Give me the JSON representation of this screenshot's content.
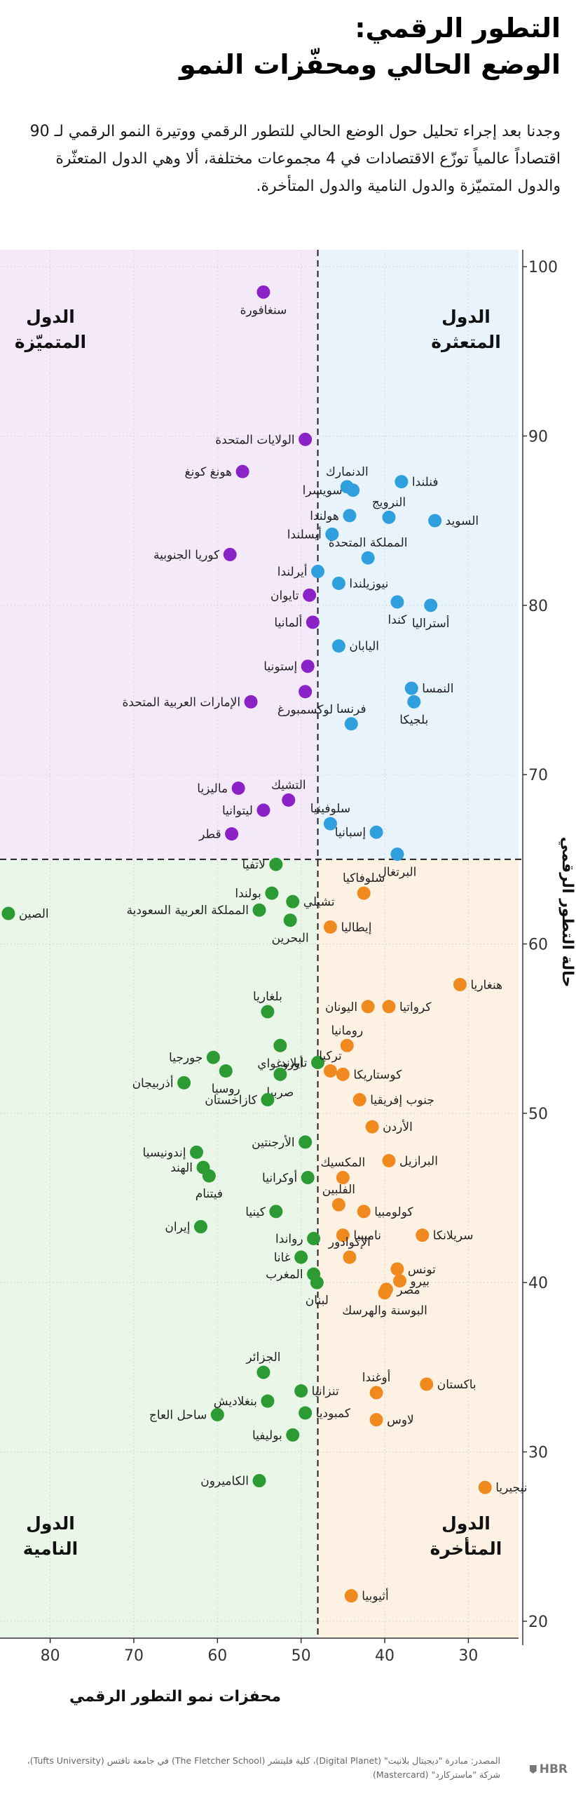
{
  "header": {
    "title_line1": "التطور الرقمي:",
    "title_line2": "الوضع الحالي ومحفّزات النمو",
    "intro_text": "وجدنا بعد إجراء تحليل حول الوضع الحالي للتطور الرقمي ووتيرة النمو الرقمي لـ 90 اقتصاداً عالمياً توزّع الاقتصادات في 4 مجموعات مختلفة، ألا وهي الدول المتعثّرة والدول المتميّزة والدول النامية والدول المتأخرة."
  },
  "colors": {
    "standout": "#8b22c8",
    "stall_out": "#2f9fdd",
    "break_out": "#2c9b34",
    "watch_out": "#f08a1e",
    "standout_bg": "#f4e9f8",
    "stall_out_bg": "#e8f3fc",
    "break_out_bg": "#eaf6e8",
    "watch_out_bg": "#fdf1e4"
  },
  "chart_data": {
    "type": "scatter",
    "xlabel": "محفزات نمو التطور الرقمي",
    "ylabel": "حالة التطور الرقمي",
    "xlim": [
      86,
      24
    ],
    "ylim": [
      19,
      101
    ],
    "x_ticks": [
      80,
      70,
      60,
      50,
      40,
      30
    ],
    "y_ticks": [
      100,
      90,
      80,
      70,
      60,
      50,
      40,
      30,
      20
    ],
    "divider_x": 48,
    "divider_y": 65,
    "quadrants": {
      "top_left": {
        "line1": "الدول",
        "line2": "المتميّزة",
        "group": "standout"
      },
      "top_right": {
        "line1": "الدول",
        "line2": "المتعثرة",
        "group": "stall_out"
      },
      "bottom_left": {
        "line1": "الدول",
        "line2": "النامية",
        "group": "break_out"
      },
      "bottom_right": {
        "line1": "الدول",
        "line2": "المتأخرة",
        "group": "watch_out"
      }
    },
    "points": [
      {
        "name": "سنغافورة",
        "x": 54.5,
        "y": 98.5,
        "group": "standout",
        "label_pos": "below"
      },
      {
        "name": "الولايات المتحدة",
        "x": 49.5,
        "y": 89.8,
        "group": "standout",
        "label_pos": "left"
      },
      {
        "name": "هونغ كونغ",
        "x": 57.0,
        "y": 87.9,
        "group": "standout",
        "label_pos": "left"
      },
      {
        "name": "كوريا الجنوبية",
        "x": 58.5,
        "y": 83.0,
        "group": "standout",
        "label_pos": "left"
      },
      {
        "name": "تايوان",
        "x": 49.0,
        "y": 80.6,
        "group": "standout",
        "label_pos": "left"
      },
      {
        "name": "ألمانيا",
        "x": 48.6,
        "y": 79.0,
        "group": "standout",
        "label_pos": "left"
      },
      {
        "name": "إستونيا",
        "x": 49.2,
        "y": 76.4,
        "group": "standout",
        "label_pos": "left"
      },
      {
        "name": "الإمارات العربية المتحدة",
        "x": 56.0,
        "y": 74.3,
        "group": "standout",
        "label_pos": "left"
      },
      {
        "name": "لوكسمبورغ",
        "x": 49.5,
        "y": 74.9,
        "group": "standout",
        "label_pos": "below"
      },
      {
        "name": "التشيك",
        "x": 51.5,
        "y": 68.5,
        "group": "standout",
        "label_pos": "above"
      },
      {
        "name": "ماليزيا",
        "x": 57.5,
        "y": 69.2,
        "group": "standout",
        "label_pos": "left"
      },
      {
        "name": "ليتوانيا",
        "x": 54.5,
        "y": 67.9,
        "group": "standout",
        "label_pos": "left"
      },
      {
        "name": "قطر",
        "x": 58.3,
        "y": 66.5,
        "group": "standout",
        "label_pos": "left"
      },
      {
        "name": "الدنمارك",
        "x": 44.5,
        "y": 87.0,
        "group": "stall_out",
        "label_pos": "above"
      },
      {
        "name": "فنلندا",
        "x": 38.0,
        "y": 87.3,
        "group": "stall_out",
        "label_pos": "right"
      },
      {
        "name": "سويسرا",
        "x": 43.8,
        "y": 86.8,
        "group": "stall_out",
        "label_pos": "left"
      },
      {
        "name": "النرويج",
        "x": 39.5,
        "y": 85.2,
        "group": "stall_out",
        "label_pos": "above"
      },
      {
        "name": "هولندا",
        "x": 44.2,
        "y": 85.3,
        "group": "stall_out",
        "label_pos": "left"
      },
      {
        "name": "السويد",
        "x": 34.0,
        "y": 85.0,
        "group": "stall_out",
        "label_pos": "right"
      },
      {
        "name": "أيسلندا",
        "x": 46.3,
        "y": 84.2,
        "group": "stall_out",
        "label_pos": "left"
      },
      {
        "name": "المملكة المتحدة",
        "x": 42.0,
        "y": 82.8,
        "group": "stall_out",
        "label_pos": "above"
      },
      {
        "name": "أيرلندا",
        "x": 48.0,
        "y": 82.0,
        "group": "stall_out",
        "label_pos": "left"
      },
      {
        "name": "نيوزيلندا",
        "x": 45.5,
        "y": 81.3,
        "group": "stall_out",
        "label_pos": "right"
      },
      {
        "name": "كندا",
        "x": 38.5,
        "y": 80.2,
        "group": "stall_out",
        "label_pos": "below"
      },
      {
        "name": "أستراليا",
        "x": 34.5,
        "y": 80.0,
        "group": "stall_out",
        "label_pos": "below"
      },
      {
        "name": "اليابان",
        "x": 45.5,
        "y": 77.6,
        "group": "stall_out",
        "label_pos": "right"
      },
      {
        "name": "النمسا",
        "x": 36.8,
        "y": 75.1,
        "group": "stall_out",
        "label_pos": "right"
      },
      {
        "name": "بلجيكا",
        "x": 36.5,
        "y": 74.3,
        "group": "stall_out",
        "label_pos": "below"
      },
      {
        "name": "فرنسا",
        "x": 44.0,
        "y": 73.0,
        "group": "stall_out",
        "label_pos": "above"
      },
      {
        "name": "سلوفينيا",
        "x": 46.5,
        "y": 67.1,
        "group": "stall_out",
        "label_pos": "above"
      },
      {
        "name": "إسبانيا",
        "x": 41.0,
        "y": 66.6,
        "group": "stall_out",
        "label_pos": "left"
      },
      {
        "name": "البرتغال",
        "x": 38.5,
        "y": 65.3,
        "group": "stall_out",
        "label_pos": "below"
      },
      {
        "name": "لاتفيا",
        "x": 53.0,
        "y": 64.7,
        "group": "break_out",
        "label_pos": "left"
      },
      {
        "name": "بولندا",
        "x": 53.5,
        "y": 63.0,
        "group": "break_out",
        "label_pos": "left"
      },
      {
        "name": "تشيلي",
        "x": 51.0,
        "y": 62.5,
        "group": "break_out",
        "label_pos": "right"
      },
      {
        "name": "المملكة العربية السعودية",
        "x": 55.0,
        "y": 62.0,
        "group": "break_out",
        "label_pos": "left"
      },
      {
        "name": "البحرين",
        "x": 51.3,
        "y": 61.4,
        "group": "break_out",
        "label_pos": "below"
      },
      {
        "name": "الصين",
        "x": 85.0,
        "y": 61.8,
        "group": "break_out",
        "label_pos": "right"
      },
      {
        "name": "بلغاريا",
        "x": 54.0,
        "y": 56.0,
        "group": "break_out",
        "label_pos": "above"
      },
      {
        "name": "أوروغواي",
        "x": 52.5,
        "y": 54.0,
        "group": "break_out",
        "label_pos": "below"
      },
      {
        "name": "جورجيا",
        "x": 60.5,
        "y": 53.3,
        "group": "break_out",
        "label_pos": "left"
      },
      {
        "name": "تايلاند",
        "x": 48.0,
        "y": 53.0,
        "group": "break_out",
        "label_pos": "left"
      },
      {
        "name": "روسيا",
        "x": 59.0,
        "y": 52.5,
        "group": "break_out",
        "label_pos": "below"
      },
      {
        "name": "صربيا",
        "x": 52.5,
        "y": 52.3,
        "group": "break_out",
        "label_pos": "below"
      },
      {
        "name": "أذربيجان",
        "x": 64.0,
        "y": 51.8,
        "group": "break_out",
        "label_pos": "left"
      },
      {
        "name": "كازاخستان",
        "x": 54.0,
        "y": 50.8,
        "group": "break_out",
        "label_pos": "left"
      },
      {
        "name": "الأرجنتين",
        "x": 49.5,
        "y": 48.3,
        "group": "break_out",
        "label_pos": "left"
      },
      {
        "name": "إندونيسيا",
        "x": 62.5,
        "y": 47.7,
        "group": "break_out",
        "label_pos": "left"
      },
      {
        "name": "الهند",
        "x": 61.7,
        "y": 46.8,
        "group": "break_out",
        "label_pos": "left"
      },
      {
        "name": "فيتنام",
        "x": 61.0,
        "y": 46.3,
        "group": "break_out",
        "label_pos": "below"
      },
      {
        "name": "أوكرانيا",
        "x": 49.2,
        "y": 46.2,
        "group": "break_out",
        "label_pos": "left"
      },
      {
        "name": "كينيا",
        "x": 53.0,
        "y": 44.2,
        "group": "break_out",
        "label_pos": "left"
      },
      {
        "name": "إيران",
        "x": 62.0,
        "y": 43.3,
        "group": "break_out",
        "label_pos": "left"
      },
      {
        "name": "رواندا",
        "x": 48.5,
        "y": 42.6,
        "group": "break_out",
        "label_pos": "left"
      },
      {
        "name": "غانا",
        "x": 50.0,
        "y": 41.5,
        "group": "break_out",
        "label_pos": "left"
      },
      {
        "name": "المغرب",
        "x": 48.5,
        "y": 40.5,
        "group": "break_out",
        "label_pos": "left"
      },
      {
        "name": "لبنان",
        "x": 48.1,
        "y": 40.0,
        "group": "break_out",
        "label_pos": "below"
      },
      {
        "name": "الجزائر",
        "x": 54.5,
        "y": 34.7,
        "group": "break_out",
        "label_pos": "above"
      },
      {
        "name": "تنزانيا",
        "x": 50.0,
        "y": 33.6,
        "group": "break_out",
        "label_pos": "right"
      },
      {
        "name": "بنغلاديش",
        "x": 54.0,
        "y": 33.0,
        "group": "break_out",
        "label_pos": "left"
      },
      {
        "name": "ساحل العاج",
        "x": 60.0,
        "y": 32.2,
        "group": "break_out",
        "label_pos": "left"
      },
      {
        "name": "كمبوديا",
        "x": 49.5,
        "y": 32.3,
        "group": "break_out",
        "label_pos": "right"
      },
      {
        "name": "بوليفيا",
        "x": 51.0,
        "y": 31.0,
        "group": "break_out",
        "label_pos": "left"
      },
      {
        "name": "الكاميرون",
        "x": 55.0,
        "y": 28.3,
        "group": "break_out",
        "label_pos": "left"
      },
      {
        "name": "سلوفاكيا",
        "x": 42.5,
        "y": 63.0,
        "group": "watch_out",
        "label_pos": "above"
      },
      {
        "name": "إيطاليا",
        "x": 46.5,
        "y": 61.0,
        "group": "watch_out",
        "label_pos": "right"
      },
      {
        "name": "هنغاريا",
        "x": 31.0,
        "y": 57.6,
        "group": "watch_out",
        "label_pos": "right"
      },
      {
        "name": "اليونان",
        "x": 42.0,
        "y": 56.3,
        "group": "watch_out",
        "label_pos": "left"
      },
      {
        "name": "كرواتيا",
        "x": 39.5,
        "y": 56.3,
        "group": "watch_out",
        "label_pos": "right"
      },
      {
        "name": "رومانيا",
        "x": 44.5,
        "y": 54.0,
        "group": "watch_out",
        "label_pos": "above"
      },
      {
        "name": "تركيا",
        "x": 46.5,
        "y": 52.5,
        "group": "watch_out",
        "label_pos": "above"
      },
      {
        "name": "كوستاريكا",
        "x": 45.0,
        "y": 52.3,
        "group": "watch_out",
        "label_pos": "right"
      },
      {
        "name": "جنوب إفريقيا",
        "x": 43.0,
        "y": 50.8,
        "group": "watch_out",
        "label_pos": "right"
      },
      {
        "name": "الأردن",
        "x": 41.5,
        "y": 49.2,
        "group": "watch_out",
        "label_pos": "right"
      },
      {
        "name": "البرازيل",
        "x": 39.5,
        "y": 47.2,
        "group": "watch_out",
        "label_pos": "right"
      },
      {
        "name": "المكسيك",
        "x": 45.0,
        "y": 46.2,
        "group": "watch_out",
        "label_pos": "above"
      },
      {
        "name": "الفلبين",
        "x": 45.5,
        "y": 44.6,
        "group": "watch_out",
        "label_pos": "above"
      },
      {
        "name": "كولومبيا",
        "x": 42.5,
        "y": 44.2,
        "group": "watch_out",
        "label_pos": "right"
      },
      {
        "name": "سريلانكا",
        "x": 35.5,
        "y": 42.8,
        "group": "watch_out",
        "label_pos": "right"
      },
      {
        "name": "ناميبيا",
        "x": 45.0,
        "y": 42.8,
        "group": "watch_out",
        "label_pos": "right"
      },
      {
        "name": "الإكوادور",
        "x": 44.2,
        "y": 41.5,
        "group": "watch_out",
        "label_pos": "above"
      },
      {
        "name": "تونس",
        "x": 38.5,
        "y": 40.8,
        "group": "watch_out",
        "label_pos": "right"
      },
      {
        "name": "بيرو",
        "x": 38.2,
        "y": 40.1,
        "group": "watch_out",
        "label_pos": "right"
      },
      {
        "name": "مصر",
        "x": 39.8,
        "y": 39.6,
        "group": "watch_out",
        "label_pos": "right"
      },
      {
        "name": "البوسنة والهرسك",
        "x": 40.0,
        "y": 39.4,
        "group": "watch_out",
        "label_pos": "below"
      },
      {
        "name": "أوغندا",
        "x": 41.0,
        "y": 33.5,
        "group": "watch_out",
        "label_pos": "above"
      },
      {
        "name": "باكستان",
        "x": 35.0,
        "y": 34.0,
        "group": "watch_out",
        "label_pos": "right"
      },
      {
        "name": "لاوس",
        "x": 41.0,
        "y": 31.9,
        "group": "watch_out",
        "label_pos": "right"
      },
      {
        "name": "نيجيريا",
        "x": 28.0,
        "y": 27.9,
        "group": "watch_out",
        "label_pos": "right"
      },
      {
        "name": "أثيوبيا",
        "x": 44.0,
        "y": 21.5,
        "group": "watch_out",
        "label_pos": "right"
      }
    ]
  },
  "footer": {
    "source_text": "المصدر: مبادرة \"ديجيتال بلانيت\" (Digital Planet)، كلية فليتشر (The Fletcher School) في جامعة تافتس (Tufts University)، شركة \"ماستركارد\" (Mastercard)",
    "logo_text": "HBR"
  }
}
